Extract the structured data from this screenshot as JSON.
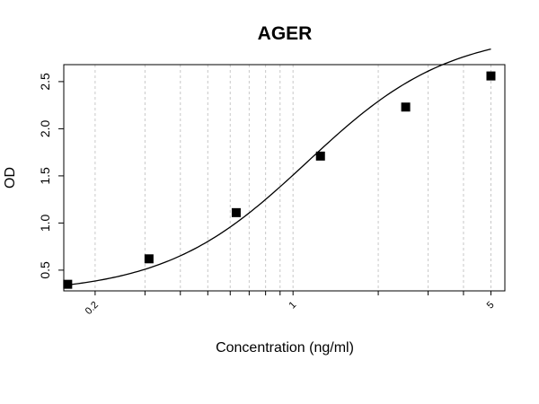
{
  "chart_data": {
    "type": "scatter",
    "title": "AGER",
    "xlabel": "Concentration (ng/ml)",
    "ylabel": "OD",
    "x_scale": "log",
    "xlim": [
      0.155,
      5.6
    ],
    "ylim": [
      0.28,
      2.68
    ],
    "grid": "vertical dashed",
    "x_ticks": [
      0.2,
      1,
      5
    ],
    "x_tick_labels": [
      "0.2",
      "1",
      "5"
    ],
    "x_minor_grid": [
      0.3,
      0.4,
      0.5,
      0.6,
      0.7,
      0.8,
      0.9,
      2,
      3,
      4,
      5
    ],
    "y_ticks": [
      0.5,
      1.0,
      1.5,
      2.0,
      2.5
    ],
    "y_tick_labels": [
      "0.5",
      "1.0",
      "1.5",
      "2.0",
      "2.5"
    ],
    "series": [
      {
        "x": [
          0.16,
          0.31,
          0.63,
          1.25,
          2.5,
          5.0
        ],
        "y": [
          0.35,
          0.62,
          1.11,
          1.71,
          2.23,
          2.56
        ]
      }
    ],
    "fit_curve": {
      "model": "4PL",
      "A": 0.25,
      "B": 1.73,
      "C": 1.12,
      "D": 3.04
    }
  }
}
